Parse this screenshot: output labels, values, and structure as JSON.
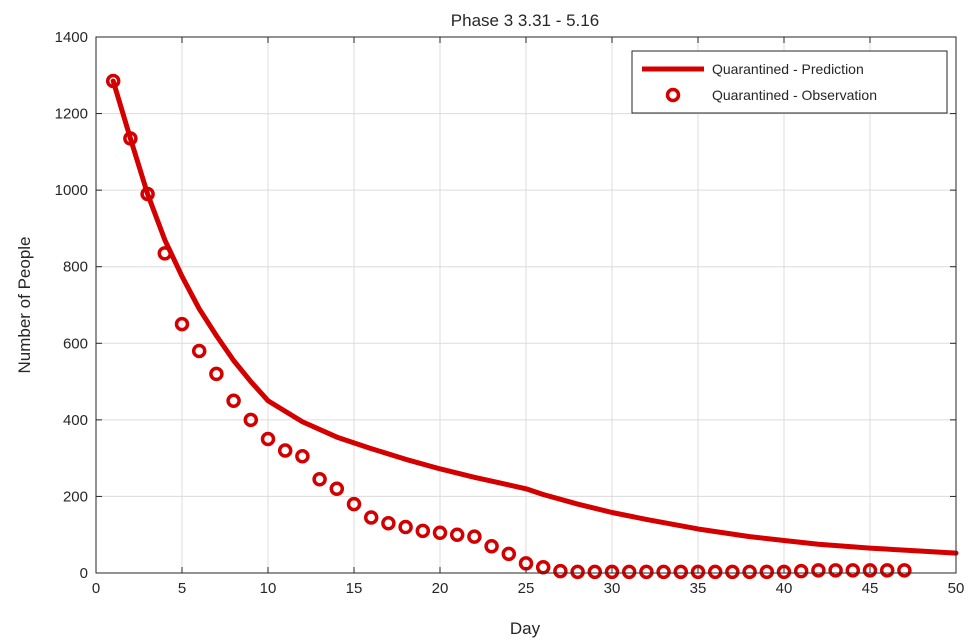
{
  "chart_data": {
    "type": "line",
    "title": "Phase 3 3.31 - 5.16",
    "xlabel": "Day",
    "ylabel": "Number of People",
    "xlim": [
      0,
      50
    ],
    "ylim": [
      0,
      1400
    ],
    "xticks": [
      0,
      5,
      10,
      15,
      20,
      25,
      30,
      35,
      40,
      45,
      50
    ],
    "yticks": [
      0,
      200,
      400,
      600,
      800,
      1000,
      1200,
      1400
    ],
    "grid": true,
    "legend_position": "top-right",
    "series": [
      {
        "name": "Quarantined - Prediction",
        "style": "line",
        "color": "#d40000",
        "x": [
          1,
          2,
          3,
          4,
          5,
          6,
          7,
          8,
          9,
          10,
          12,
          14,
          15,
          16,
          18,
          20,
          22,
          24,
          25,
          26,
          28,
          30,
          32,
          35,
          38,
          40,
          42,
          45,
          48,
          50
        ],
        "y": [
          1285,
          1135,
          990,
          870,
          775,
          690,
          620,
          555,
          500,
          450,
          395,
          355,
          340,
          325,
          297,
          272,
          250,
          230,
          220,
          205,
          180,
          158,
          140,
          115,
          95,
          85,
          75,
          65,
          57,
          52
        ]
      },
      {
        "name": "Quarantined - Observation",
        "style": "marker",
        "color": "#d40000",
        "x": [
          1,
          2,
          3,
          4,
          5,
          6,
          7,
          8,
          9,
          10,
          11,
          12,
          13,
          14,
          15,
          16,
          17,
          18,
          19,
          20,
          21,
          22,
          23,
          24,
          25,
          26,
          27,
          28,
          29,
          30,
          31,
          32,
          33,
          34,
          35,
          36,
          37,
          38,
          39,
          40,
          41,
          42,
          43,
          44,
          45,
          46,
          47
        ],
        "y": [
          1285,
          1135,
          990,
          835,
          650,
          580,
          520,
          450,
          400,
          350,
          320,
          305,
          245,
          220,
          180,
          145,
          130,
          120,
          110,
          105,
          100,
          95,
          70,
          50,
          25,
          15,
          5,
          3,
          3,
          3,
          3,
          3,
          3,
          3,
          3,
          3,
          3,
          3,
          3,
          3,
          5,
          7,
          7,
          7,
          7,
          7,
          7
        ]
      }
    ]
  }
}
